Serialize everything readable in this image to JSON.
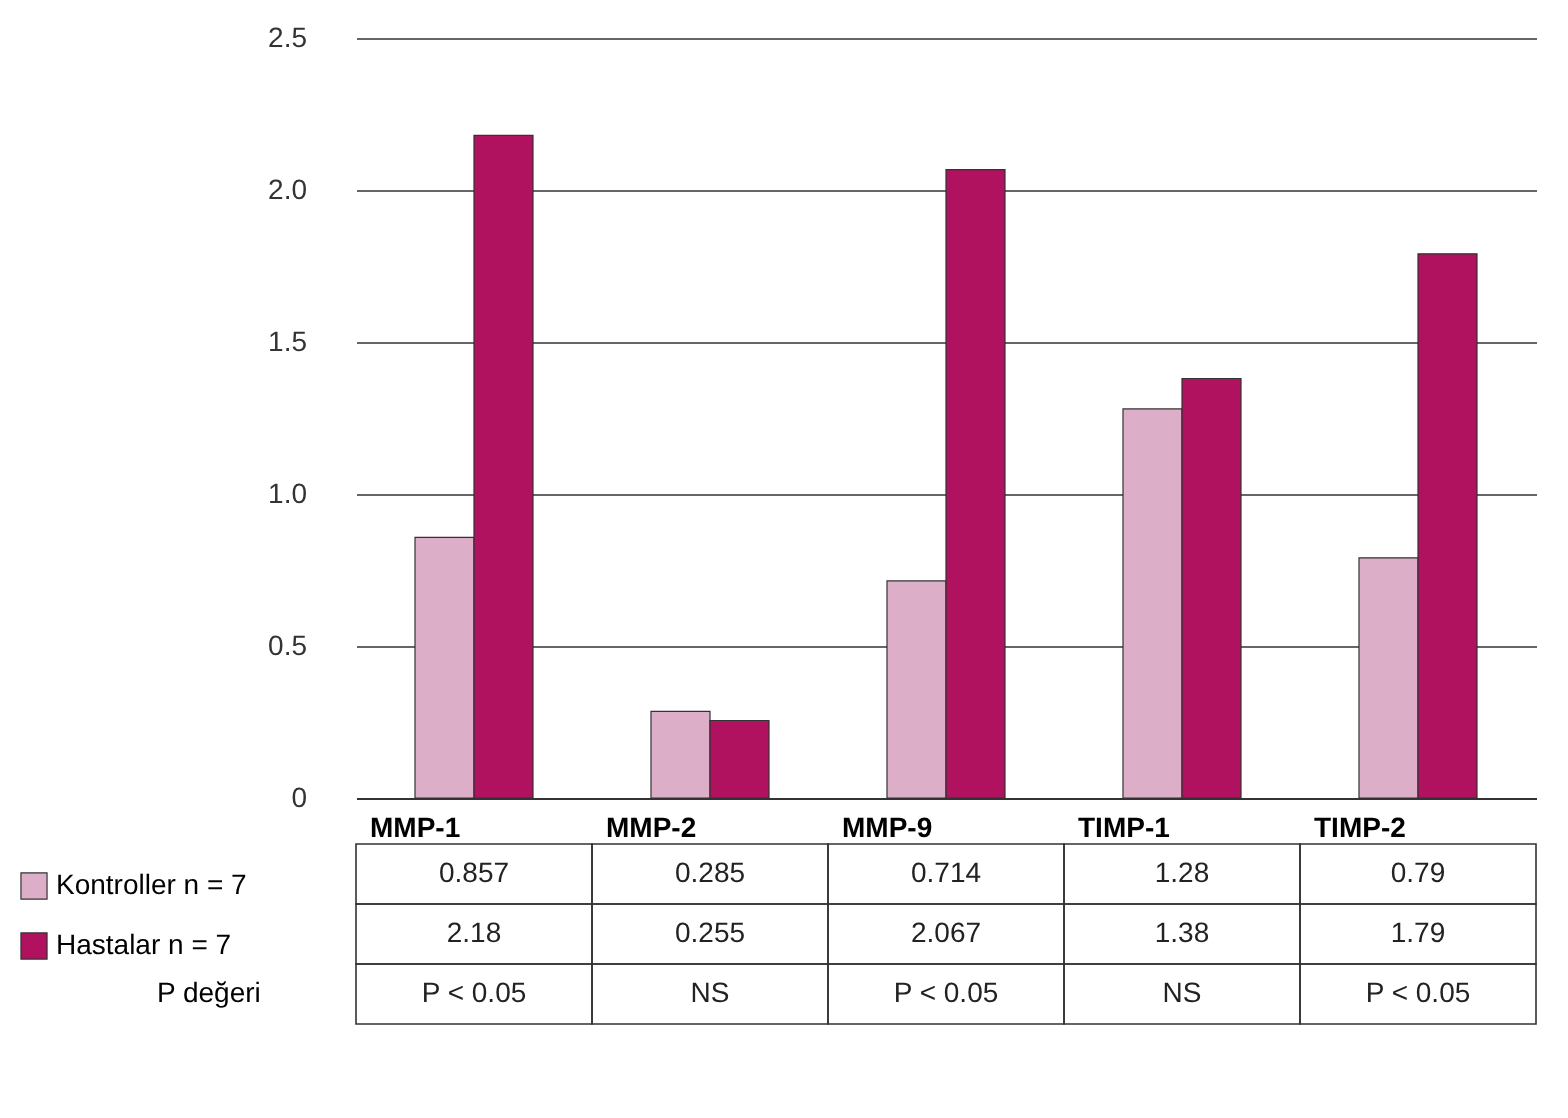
{
  "chart_data": {
    "type": "bar",
    "categories": [
      "MMP-1",
      "MMP-2",
      "MMP-9",
      "TIMP-1",
      "TIMP-2"
    ],
    "series": [
      {
        "name": "Kontroller n = 7",
        "color": "#dcaec8",
        "values": [
          0.857,
          0.285,
          0.714,
          1.28,
          0.79
        ]
      },
      {
        "name": "Hastalar n = 7",
        "color": "#b0125f",
        "values": [
          2.18,
          0.255,
          2.067,
          1.38,
          1.79
        ]
      }
    ],
    "ylim": [
      0,
      2.5
    ],
    "yticks": [
      {
        "value": 0,
        "label": "0"
      },
      0.5,
      {
        "value": 1,
        "label": "1.0"
      },
      1.5,
      {
        "value": 2,
        "label": "2.0"
      },
      2.5
    ],
    "grid": "y",
    "legend": "bottom left",
    "data_labels": true,
    "annotations": [
      "P değeri",
      "P < 0.05",
      "NS",
      "P < 0.05",
      "NS",
      "P < 0.05"
    ]
  }
}
